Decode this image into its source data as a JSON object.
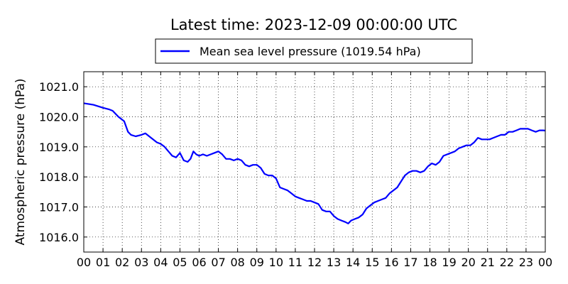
{
  "chart_data": {
    "type": "line",
    "title": "Latest time: 2023-12-09 00:00:00 UTC",
    "xlabel": "",
    "ylabel": "Atmospheric pressure (hPa)",
    "xlim": [
      0,
      24
    ],
    "ylim": [
      1015.5,
      1021.5
    ],
    "grid": true,
    "legend_position": "top-center",
    "x_tick_labels": [
      "00",
      "01",
      "02",
      "03",
      "04",
      "05",
      "06",
      "07",
      "08",
      "09",
      "10",
      "11",
      "12",
      "13",
      "14",
      "15",
      "16",
      "17",
      "18",
      "19",
      "20",
      "21",
      "22",
      "23",
      "00"
    ],
    "y_ticks": [
      1016.0,
      1017.0,
      1018.0,
      1019.0,
      1020.0,
      1021.0
    ],
    "y_tick_labels": [
      "1016.0",
      "1017.0",
      "1018.0",
      "1019.0",
      "1020.0",
      "1021.0"
    ],
    "series": [
      {
        "name": "Mean sea level pressure (1019.54 hPa)",
        "color": "#0000ff",
        "x": [
          0.0,
          0.5,
          1.0,
          1.3,
          1.5,
          1.8,
          2.1,
          2.3,
          2.45,
          2.7,
          3.0,
          3.2,
          3.5,
          3.8,
          4.0,
          4.2,
          4.4,
          4.6,
          4.8,
          5.0,
          5.2,
          5.4,
          5.55,
          5.7,
          5.85,
          6.0,
          6.2,
          6.4,
          6.6,
          6.8,
          7.0,
          7.2,
          7.4,
          7.6,
          7.8,
          8.0,
          8.2,
          8.4,
          8.6,
          8.8,
          9.0,
          9.2,
          9.4,
          9.6,
          9.8,
          10.0,
          10.2,
          10.4,
          10.6,
          10.8,
          11.0,
          11.2,
          11.4,
          11.6,
          11.8,
          12.0,
          12.2,
          12.4,
          12.6,
          12.8,
          13.0,
          13.2,
          13.4,
          13.6,
          13.75,
          13.9,
          14.1,
          14.3,
          14.5,
          14.7,
          14.9,
          15.1,
          15.3,
          15.5,
          15.7,
          15.9,
          16.1,
          16.3,
          16.5,
          16.7,
          16.9,
          17.1,
          17.3,
          17.5,
          17.7,
          17.9,
          18.1,
          18.3,
          18.5,
          18.7,
          18.9,
          19.1,
          19.3,
          19.5,
          19.7,
          19.9,
          20.1,
          20.3,
          20.5,
          20.7,
          20.9,
          21.1,
          21.3,
          21.5,
          21.7,
          21.9,
          22.1,
          22.3,
          22.5,
          22.7,
          22.9,
          23.1,
          23.3,
          23.5,
          23.7,
          23.9,
          24.0
        ],
        "y": [
          1020.45,
          1020.4,
          1020.3,
          1020.25,
          1020.2,
          1020.0,
          1019.85,
          1019.5,
          1019.4,
          1019.35,
          1019.4,
          1019.45,
          1019.3,
          1019.15,
          1019.1,
          1019.0,
          1018.85,
          1018.7,
          1018.65,
          1018.8,
          1018.55,
          1018.5,
          1018.6,
          1018.85,
          1018.75,
          1018.7,
          1018.75,
          1018.7,
          1018.75,
          1018.8,
          1018.85,
          1018.75,
          1018.6,
          1018.6,
          1018.55,
          1018.6,
          1018.55,
          1018.4,
          1018.35,
          1018.4,
          1018.4,
          1018.3,
          1018.1,
          1018.05,
          1018.05,
          1017.95,
          1017.65,
          1017.6,
          1017.55,
          1017.45,
          1017.35,
          1017.3,
          1017.25,
          1017.2,
          1017.2,
          1017.15,
          1017.1,
          1016.9,
          1016.85,
          1016.85,
          1016.7,
          1016.6,
          1016.55,
          1016.5,
          1016.45,
          1016.55,
          1016.6,
          1016.65,
          1016.75,
          1016.95,
          1017.05,
          1017.15,
          1017.2,
          1017.25,
          1017.3,
          1017.45,
          1017.55,
          1017.65,
          1017.85,
          1018.05,
          1018.15,
          1018.2,
          1018.2,
          1018.15,
          1018.2,
          1018.35,
          1018.45,
          1018.4,
          1018.5,
          1018.7,
          1018.75,
          1018.8,
          1018.85,
          1018.95,
          1019.0,
          1019.05,
          1019.05,
          1019.15,
          1019.3,
          1019.25,
          1019.25,
          1019.25,
          1019.3,
          1019.35,
          1019.4,
          1019.4,
          1019.5,
          1019.5,
          1019.55,
          1019.6,
          1019.6,
          1019.6,
          1019.55,
          1019.5,
          1019.55,
          1019.55,
          1019.54
        ]
      }
    ]
  }
}
